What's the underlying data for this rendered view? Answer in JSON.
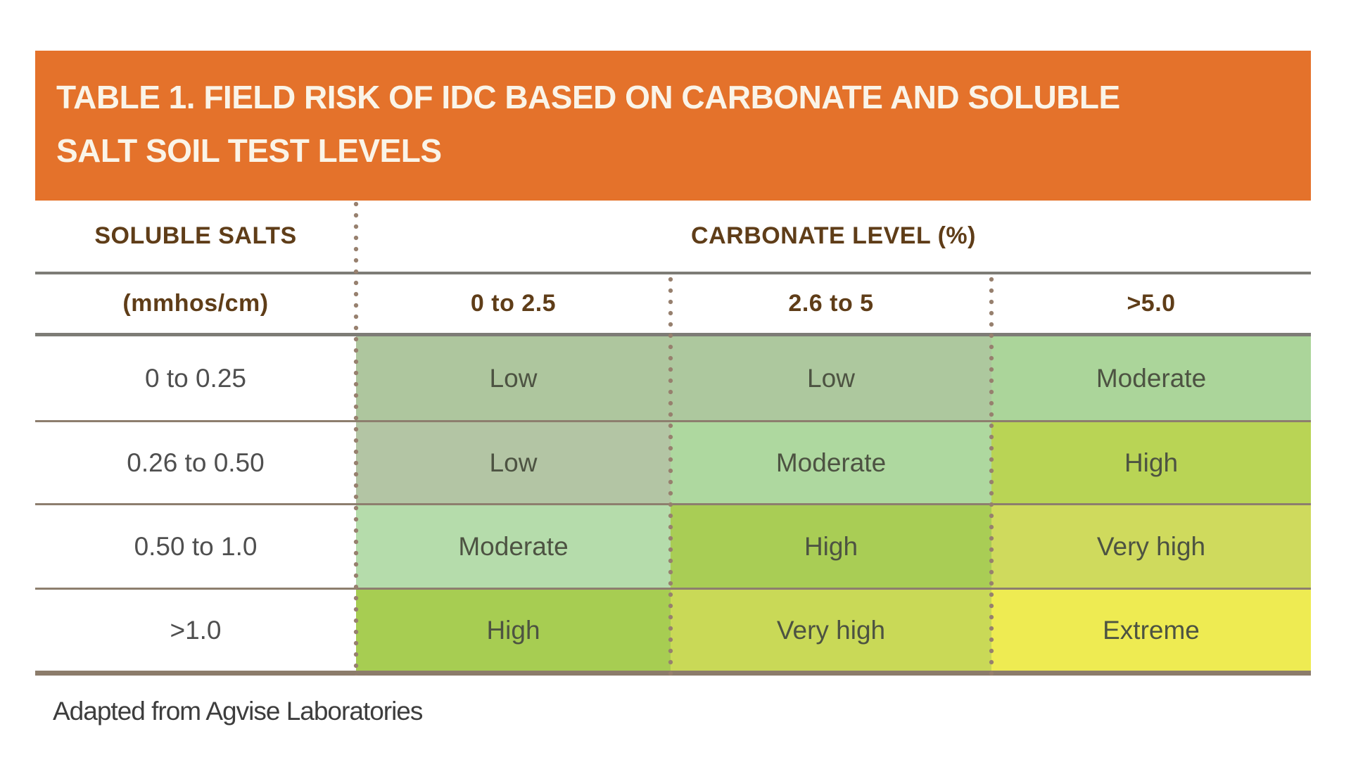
{
  "title_bar": {
    "bg": "#e4722b",
    "text_color": "#faf4e8",
    "line1": "TABLE 1. FIELD RISK OF IDC BASED ON CARBONATE AND SOLUBLE",
    "line2": "SALT SOIL TEST LEVELS"
  },
  "table": {
    "header": {
      "row_group_label": "SOLUBLE SALTS",
      "col_group_label": "CARBONATE LEVEL (%)",
      "sub": [
        "(mmhos/cm)",
        "0 to 2.5",
        "2.6 to 5",
        ">5.0"
      ]
    },
    "rows": [
      {
        "label": "0 to 0.25",
        "cells": [
          {
            "text": "Low",
            "bg": "#aec69e"
          },
          {
            "text": "Low",
            "bg": "#adc89e"
          },
          {
            "text": "Moderate",
            "bg": "#abd59a"
          }
        ]
      },
      {
        "label": "0.26 to 0.50",
        "cells": [
          {
            "text": "Low",
            "bg": "#b3c5a4"
          },
          {
            "text": "Moderate",
            "bg": "#aed89f"
          },
          {
            "text": "High",
            "bg": "#b9d455"
          }
        ]
      },
      {
        "label": "0.50 to 1.0",
        "cells": [
          {
            "text": "Moderate",
            "bg": "#b5dcab"
          },
          {
            "text": "High",
            "bg": "#a9cd55"
          },
          {
            "text": "Very high",
            "bg": "#cfda5d"
          }
        ]
      },
      {
        "label": ">1.0",
        "cells": [
          {
            "text": "High",
            "bg": "#a7cd52"
          },
          {
            "text": "Very high",
            "bg": "#c9d957"
          },
          {
            "text": "Extreme",
            "bg": "#eeeb52"
          }
        ]
      }
    ],
    "source_note": "Adapted from Agvise Laboratories"
  },
  "colors": {
    "header_brown": "#5f3d18",
    "row_label_gray": "#4f4f4f",
    "cell_text": "#4d5342",
    "footer_text": "#3d3d3d"
  },
  "chart_data": {
    "type": "table",
    "title": "TABLE 1. FIELD RISK OF IDC BASED ON CARBONATE AND SOLUBLE SALT SOIL TEST LEVELS",
    "row_header": "SOLUBLE SALTS (mmhos/cm)",
    "column_header": "CARBONATE LEVEL (%)",
    "columns": [
      "0 to 2.5",
      "2.6 to 5",
      ">5.0"
    ],
    "rows": [
      "0 to 0.25",
      "0.26 to 0.50",
      "0.50 to 1.0",
      ">1.0"
    ],
    "values": [
      [
        "Low",
        "Low",
        "Moderate"
      ],
      [
        "Low",
        "Moderate",
        "High"
      ],
      [
        "Moderate",
        "High",
        "Very high"
      ],
      [
        "High",
        "Very high",
        "Extreme"
      ]
    ],
    "source": "Adapted from Agvise Laboratories"
  }
}
